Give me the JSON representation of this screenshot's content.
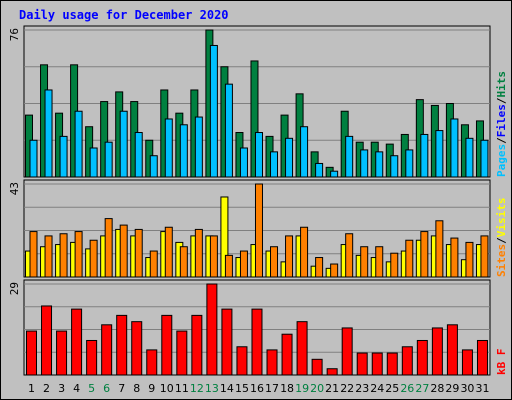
{
  "title": "Daily usage for December 2020",
  "colors": {
    "hits": "#008040",
    "files": "#00c0ff",
    "sites": "#ff8000",
    "visits": "#ffff00",
    "kbytes": "#ff0000",
    "weekend_label": "#008040",
    "weekday_label": "#000000",
    "plot_bg": "#c0c0c0"
  },
  "chart_data": [
    {
      "type": "bar",
      "name": "hits-files-pages",
      "ymax_label": "76",
      "ylim": [
        0,
        76
      ],
      "categories": [
        "1",
        "2",
        "3",
        "4",
        "5",
        "6",
        "7",
        "8",
        "9",
        "10",
        "11",
        "12",
        "13",
        "14",
        "15",
        "16",
        "17",
        "18",
        "19",
        "20",
        "21",
        "22",
        "23",
        "24",
        "25",
        "26",
        "27",
        "28",
        "29",
        "30",
        "31"
      ],
      "weekend_days": [
        "5",
        "6",
        "12",
        "13",
        "19",
        "20",
        "26",
        "27"
      ],
      "legend": [
        {
          "label": "Pages",
          "color": "#00c0ff"
        },
        {
          "label": "/",
          "color": "#000000"
        },
        {
          "label": "Files",
          "color": "#0000ff"
        },
        {
          "label": "/",
          "color": "#000000"
        },
        {
          "label": "Hits",
          "color": "#008040"
        }
      ],
      "series": [
        {
          "name": "Hits",
          "values": [
            32,
            58,
            33,
            58,
            26,
            39,
            44,
            39,
            19,
            45,
            33,
            45,
            76,
            57,
            23,
            60,
            21,
            32,
            43,
            13,
            5,
            34,
            18,
            18,
            17,
            22,
            40,
            37,
            38,
            27,
            29
          ]
        },
        {
          "name": "Files",
          "values": [
            19,
            45,
            21,
            34,
            15,
            18,
            34,
            23,
            11,
            30,
            27,
            31,
            68,
            48,
            15,
            23,
            13,
            20,
            26,
            7,
            3,
            21,
            14,
            13,
            11,
            14,
            22,
            24,
            30,
            20,
            19
          ]
        },
        {
          "name": "Pages",
          "values": [
            19,
            45,
            21,
            34,
            15,
            18,
            34,
            23,
            11,
            30,
            27,
            31,
            68,
            48,
            15,
            23,
            13,
            20,
            26,
            7,
            3,
            21,
            14,
            13,
            11,
            14,
            22,
            24,
            30,
            20,
            19
          ]
        }
      ]
    },
    {
      "type": "bar",
      "name": "sites-visits",
      "ymax_label": "43",
      "ylim": [
        0,
        43
      ],
      "categories": [
        "1",
        "2",
        "3",
        "4",
        "5",
        "6",
        "7",
        "8",
        "9",
        "10",
        "11",
        "12",
        "13",
        "14",
        "15",
        "16",
        "17",
        "18",
        "19",
        "20",
        "21",
        "22",
        "23",
        "24",
        "25",
        "26",
        "27",
        "28",
        "29",
        "30",
        "31"
      ],
      "legend": [
        {
          "label": "Sites",
          "color": "#ff8000"
        },
        {
          "label": "/",
          "color": "#000000"
        },
        {
          "label": "Visits",
          "color": "#ffff00"
        }
      ],
      "series": [
        {
          "name": "Visits",
          "values": [
            12,
            14,
            15,
            16,
            13,
            19,
            22,
            19,
            9,
            21,
            16,
            19,
            19,
            37,
            9,
            15,
            12,
            7,
            19,
            5,
            4,
            15,
            10,
            9,
            7,
            12,
            17,
            19,
            15,
            8,
            15
          ]
        },
        {
          "name": "Sites",
          "values": [
            21,
            19,
            20,
            21,
            17,
            27,
            24,
            22,
            12,
            23,
            14,
            22,
            19,
            10,
            12,
            43,
            14,
            19,
            23,
            9,
            6,
            20,
            14,
            14,
            11,
            17,
            21,
            26,
            18,
            16,
            19
          ]
        }
      ]
    },
    {
      "type": "bar",
      "name": "kbytes",
      "ymax_label": "29",
      "ylim": [
        0,
        29
      ],
      "categories": [
        "1",
        "2",
        "3",
        "4",
        "5",
        "6",
        "7",
        "8",
        "9",
        "10",
        "11",
        "12",
        "13",
        "14",
        "15",
        "16",
        "17",
        "18",
        "19",
        "20",
        "21",
        "22",
        "23",
        "24",
        "25",
        "26",
        "27",
        "28",
        "29",
        "30",
        "31"
      ],
      "legend": [
        {
          "label": "kB F",
          "color": "#ff0000"
        }
      ],
      "series": [
        {
          "name": "kB F",
          "values": [
            14,
            22,
            14,
            21,
            11,
            16,
            19,
            17,
            8,
            19,
            14,
            19,
            29,
            21,
            9,
            21,
            8,
            13,
            17,
            5,
            2,
            15,
            7,
            7,
            7,
            9,
            11,
            15,
            16,
            8,
            11
          ]
        }
      ]
    }
  ]
}
